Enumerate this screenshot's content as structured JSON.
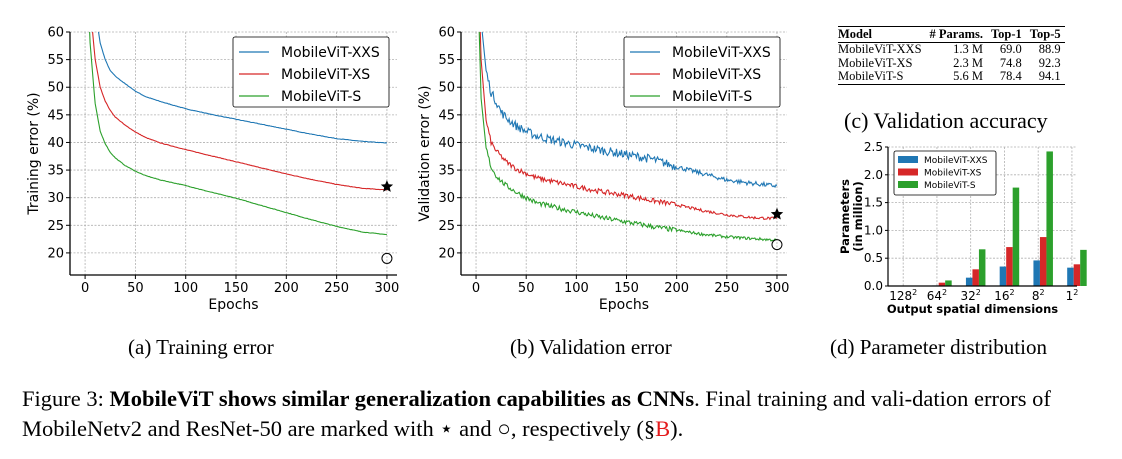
{
  "chart_data": [
    {
      "id": "a",
      "type": "line",
      "xlabel": "Epochs",
      "ylabel": "Training error (%)",
      "xlim": [
        -15,
        310
      ],
      "ylim": [
        16,
        60
      ],
      "xticks": [
        0,
        50,
        100,
        150,
        200,
        250,
        300
      ],
      "yticks": [
        20,
        25,
        30,
        35,
        40,
        45,
        50,
        55,
        60
      ],
      "grid": true,
      "legend": "top-right",
      "x": [
        0,
        5,
        10,
        15,
        20,
        25,
        30,
        40,
        50,
        60,
        75,
        100,
        125,
        150,
        175,
        200,
        225,
        250,
        275,
        300
      ],
      "series": [
        {
          "name": "MobileViT-XXS",
          "color": "#1f77b4",
          "values": [
            90,
            75,
            64,
            58,
            55,
            53,
            52,
            50.6,
            49.3,
            48.3,
            47.4,
            46.1,
            45.1,
            44.2,
            43.3,
            42.4,
            41.5,
            40.7,
            40.2,
            39.9
          ]
        },
        {
          "name": "MobileViT-XS",
          "color": "#d62728",
          "values": [
            85,
            65,
            55,
            50,
            47.5,
            45.8,
            44.6,
            43.1,
            41.9,
            40.9,
            39.9,
            38.7,
            37.6,
            36.5,
            35.4,
            34.3,
            33.3,
            32.4,
            31.7,
            31.4
          ]
        },
        {
          "name": "MobileViT-S",
          "color": "#2ca02c",
          "values": [
            80,
            58,
            47,
            42,
            39.8,
            38.2,
            37.2,
            35.8,
            34.8,
            34.0,
            33.2,
            32.2,
            31.0,
            29.9,
            28.6,
            27.3,
            26.0,
            24.8,
            23.8,
            23.3
          ]
        }
      ],
      "markers": [
        {
          "label": "MobileNetv2",
          "symbol": "star",
          "x": 300,
          "y": 32.0
        },
        {
          "label": "ResNet-50",
          "symbol": "circle",
          "x": 300,
          "y": 19.0
        }
      ]
    },
    {
      "id": "b",
      "type": "line",
      "xlabel": "Epochs",
      "ylabel": "Validation error (%)",
      "xlim": [
        -15,
        310
      ],
      "ylim": [
        16,
        60
      ],
      "xticks": [
        0,
        50,
        100,
        150,
        200,
        250,
        300
      ],
      "yticks": [
        20,
        25,
        30,
        35,
        40,
        45,
        50,
        55,
        60
      ],
      "grid": true,
      "legend": "top-right",
      "noisy": true,
      "x": [
        0,
        5,
        10,
        15,
        20,
        25,
        30,
        40,
        50,
        60,
        75,
        100,
        125,
        150,
        175,
        200,
        225,
        250,
        275,
        300
      ],
      "series": [
        {
          "name": "MobileViT-XXS",
          "color": "#1f77b4",
          "values": [
            90,
            62,
            53,
            49,
            47.5,
            45.5,
            44.5,
            43,
            42,
            41.2,
            40.5,
            39.5,
            38.6,
            37.8,
            37.0,
            35.6,
            34.4,
            33.2,
            32.6,
            32.1
          ]
        },
        {
          "name": "MobileViT-XS",
          "color": "#d62728",
          "values": [
            85,
            55,
            44,
            40,
            38.5,
            37.5,
            36.5,
            35.2,
            34.4,
            33.6,
            33.0,
            32.0,
            31.1,
            30.4,
            29.5,
            28.7,
            27.7,
            26.9,
            26.4,
            26.2
          ]
        },
        {
          "name": "MobileViT-S",
          "color": "#2ca02c",
          "values": [
            80,
            48,
            39,
            35.5,
            34,
            33,
            32.2,
            31.0,
            30.0,
            29.1,
            28.4,
            27.4,
            26.4,
            25.6,
            24.8,
            24.1,
            23.4,
            22.9,
            22.6,
            22.3
          ]
        }
      ],
      "markers": [
        {
          "label": "MobileNetv2",
          "symbol": "star",
          "x": 300,
          "y": 27.0
        },
        {
          "label": "ResNet-50",
          "symbol": "circle",
          "x": 300,
          "y": 21.5
        }
      ]
    },
    {
      "id": "c",
      "type": "table",
      "title": "(c) Validation accuracy",
      "columns": [
        "Model",
        "# Params.",
        "Top-1",
        "Top-5"
      ],
      "rows": [
        [
          "MobileViT-XXS",
          "1.3 M",
          "69.0",
          "88.9"
        ],
        [
          "MobileViT-XS",
          "2.3 M",
          "74.8",
          "92.3"
        ],
        [
          "MobileViT-S",
          "5.6 M",
          "78.4",
          "94.1"
        ]
      ]
    },
    {
      "id": "d",
      "type": "bar",
      "xlabel": "Output spatial dimensions",
      "ylabel_line1": "Parameters",
      "ylabel_line2": "(in million)",
      "ylim": [
        0,
        2.5
      ],
      "yticks": [
        "0.0",
        "0.5",
        "1.0",
        "1.5",
        "2.0",
        "2.5"
      ],
      "grid": true,
      "legend": "top-left",
      "categories": [
        {
          "base": "128",
          "exp": "2"
        },
        {
          "base": "64",
          "exp": "2"
        },
        {
          "base": "32",
          "exp": "2"
        },
        {
          "base": "16",
          "exp": "2"
        },
        {
          "base": "8",
          "exp": "2"
        },
        {
          "base": "1",
          "exp": "2"
        }
      ],
      "series": [
        {
          "name": "MobileViT-XXS",
          "color": "#1f77b4",
          "values": [
            0.0,
            0.01,
            0.15,
            0.35,
            0.46,
            0.33
          ]
        },
        {
          "name": "MobileViT-XS",
          "color": "#d62728",
          "values": [
            0.0,
            0.06,
            0.3,
            0.7,
            0.88,
            0.39
          ]
        },
        {
          "name": "MobileViT-S",
          "color": "#2ca02c",
          "values": [
            0.0,
            0.1,
            0.66,
            1.77,
            2.42,
            0.65
          ]
        }
      ]
    }
  ],
  "subcaptions": {
    "a": "(a) Training error",
    "b": "(b) Validation error",
    "c": "(c) Validation accuracy",
    "d": "(d) Parameter distribution"
  },
  "caption": {
    "prefix": "Figure 3: ",
    "bold": "MobileViT shows similar generalization capabilities as CNNs",
    "rest": ". Final training and vali-dation errors of MobileNetv2 and ResNet-50 are marked with ",
    "star": "⋆",
    "and": " and ",
    "circle": "○",
    "tail": ", respectively (§",
    "ref": "B",
    "end": ")."
  }
}
